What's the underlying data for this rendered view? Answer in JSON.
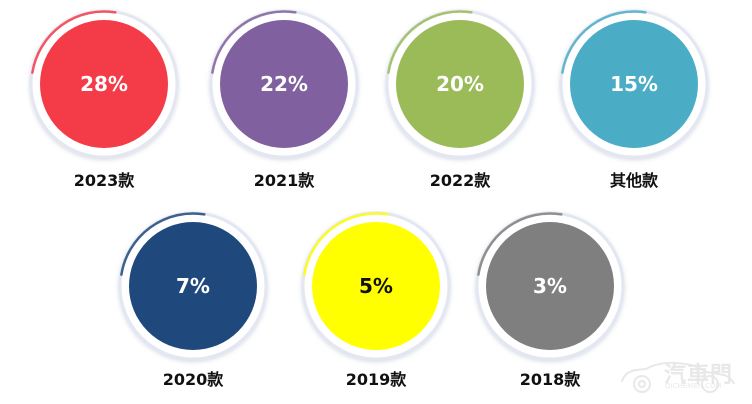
{
  "chart_data": {
    "type": "pie",
    "categories": [
      "2023款",
      "2021款",
      "2022款",
      "其他款",
      "2020款",
      "2019款",
      "2018款"
    ],
    "values": [
      28,
      22,
      20,
      15,
      7,
      5,
      3
    ],
    "value_labels": [
      "28%",
      "22%",
      "20%",
      "15%",
      "7%",
      "5%",
      "3%"
    ],
    "colors": [
      "#f43c49",
      "#80609f",
      "#9bbb59",
      "#4bacc6",
      "#1f497d",
      "#ffff00",
      "#7f7f7f"
    ],
    "value_text_colors": [
      "#ffffff",
      "#ffffff",
      "#ffffff",
      "#ffffff",
      "#ffffff",
      "#111111",
      "#ffffff"
    ]
  },
  "watermark": {
    "text": "汽車門",
    "subtext": "QICHEMEN.COM"
  }
}
